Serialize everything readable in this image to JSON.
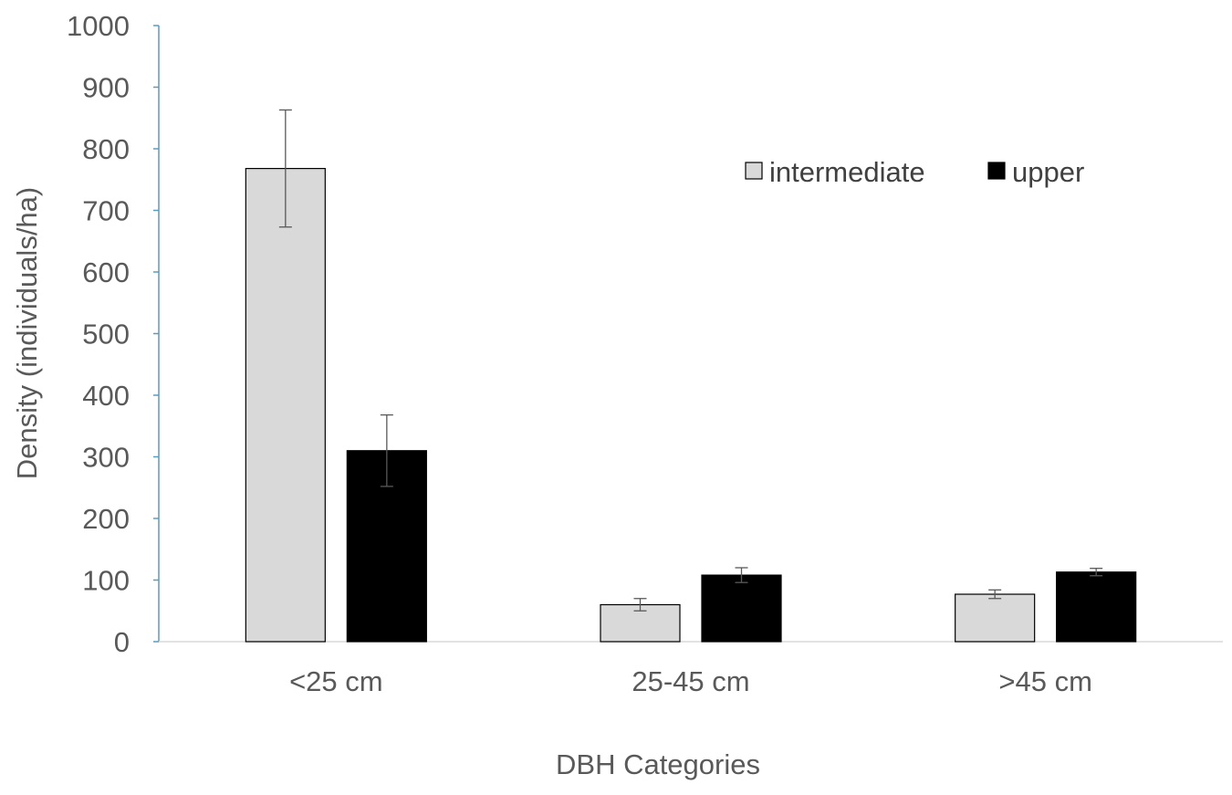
{
  "chart_data": {
    "type": "bar",
    "title": "",
    "xlabel": "DBH Categories",
    "ylabel": "Density (individuals/ha)",
    "categories": [
      "<25 cm",
      "25-45 cm",
      ">45 cm"
    ],
    "ylim": [
      0,
      1000
    ],
    "yticks": [
      0,
      100,
      200,
      300,
      400,
      500,
      600,
      700,
      800,
      900,
      1000
    ],
    "grid": false,
    "legend_position": "top-right",
    "series": [
      {
        "name": "intermediate",
        "color": "#d9d9d9",
        "values": [
          768,
          60,
          77
        ],
        "error": [
          95,
          10,
          7
        ]
      },
      {
        "name": "upper",
        "color": "#000000",
        "values": [
          310,
          108,
          113
        ],
        "error": [
          58,
          12,
          6
        ]
      }
    ]
  }
}
